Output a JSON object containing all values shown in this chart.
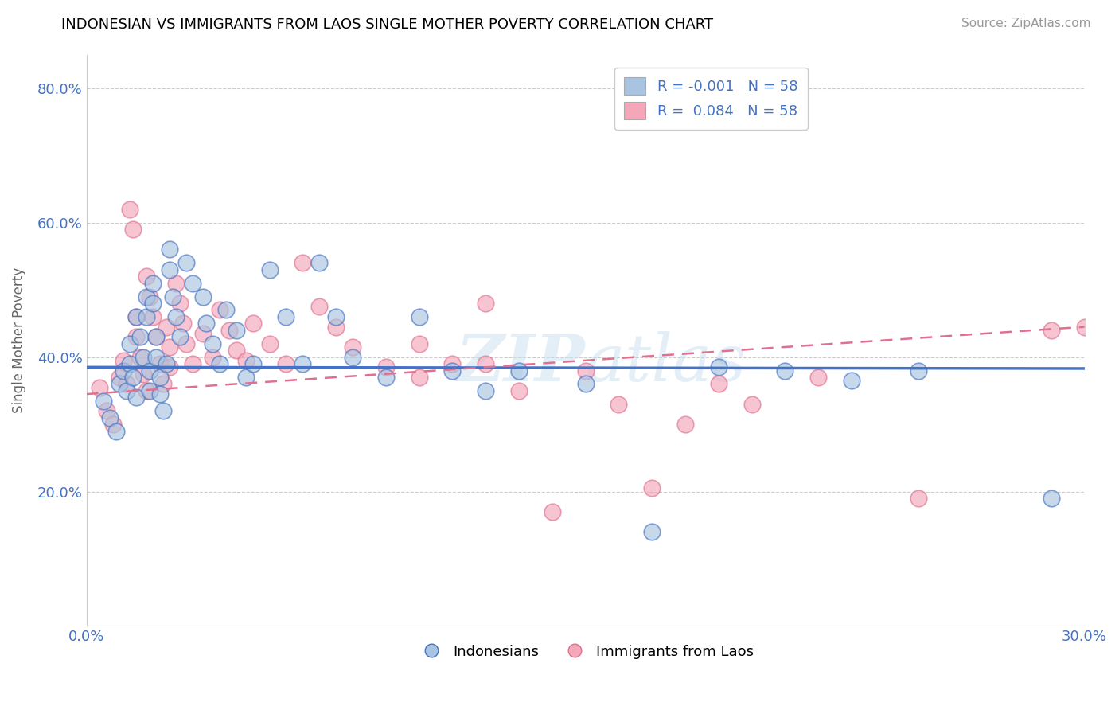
{
  "title": "INDONESIAN VS IMMIGRANTS FROM LAOS SINGLE MOTHER POVERTY CORRELATION CHART",
  "source": "Source: ZipAtlas.com",
  "ylabel": "Single Mother Poverty",
  "xlabel": "",
  "xlim": [
    0.0,
    0.3
  ],
  "ylim": [
    0.0,
    0.85
  ],
  "xticks": [
    0.0,
    0.05,
    0.1,
    0.15,
    0.2,
    0.25,
    0.3
  ],
  "xticklabels": [
    "0.0%",
    "",
    "",
    "",
    "",
    "",
    "30.0%"
  ],
  "yticks": [
    0.0,
    0.2,
    0.4,
    0.6,
    0.8
  ],
  "yticklabels": [
    "",
    "20.0%",
    "40.0%",
    "60.0%",
    "80.0%"
  ],
  "color_blue": "#a8c4e0",
  "color_pink": "#f4a7b9",
  "line_blue": "#4472c4",
  "line_pink": "#e07090",
  "watermark": "ZIPatlas",
  "blue_trend_y0": 0.385,
  "blue_trend_y1": 0.383,
  "pink_trend_y0": 0.345,
  "pink_trend_y1": 0.445,
  "blue_scatter_x": [
    0.005,
    0.007,
    0.009,
    0.01,
    0.011,
    0.012,
    0.013,
    0.013,
    0.014,
    0.015,
    0.015,
    0.016,
    0.017,
    0.018,
    0.018,
    0.019,
    0.019,
    0.02,
    0.02,
    0.021,
    0.021,
    0.022,
    0.022,
    0.023,
    0.024,
    0.025,
    0.025,
    0.026,
    0.027,
    0.028,
    0.03,
    0.032,
    0.035,
    0.036,
    0.038,
    0.04,
    0.042,
    0.045,
    0.048,
    0.05,
    0.055,
    0.06,
    0.065,
    0.07,
    0.075,
    0.08,
    0.09,
    0.1,
    0.11,
    0.12,
    0.13,
    0.15,
    0.17,
    0.19,
    0.21,
    0.23,
    0.25,
    0.29
  ],
  "blue_scatter_y": [
    0.335,
    0.31,
    0.29,
    0.36,
    0.38,
    0.35,
    0.42,
    0.39,
    0.37,
    0.34,
    0.46,
    0.43,
    0.4,
    0.49,
    0.46,
    0.38,
    0.35,
    0.51,
    0.48,
    0.43,
    0.4,
    0.37,
    0.345,
    0.32,
    0.39,
    0.56,
    0.53,
    0.49,
    0.46,
    0.43,
    0.54,
    0.51,
    0.49,
    0.45,
    0.42,
    0.39,
    0.47,
    0.44,
    0.37,
    0.39,
    0.53,
    0.46,
    0.39,
    0.54,
    0.46,
    0.4,
    0.37,
    0.46,
    0.38,
    0.35,
    0.38,
    0.36,
    0.14,
    0.385,
    0.38,
    0.365,
    0.38,
    0.19
  ],
  "pink_scatter_x": [
    0.004,
    0.006,
    0.008,
    0.01,
    0.011,
    0.012,
    0.013,
    0.014,
    0.015,
    0.015,
    0.016,
    0.017,
    0.018,
    0.018,
    0.019,
    0.02,
    0.021,
    0.022,
    0.023,
    0.024,
    0.025,
    0.025,
    0.027,
    0.028,
    0.029,
    0.03,
    0.032,
    0.035,
    0.038,
    0.04,
    0.043,
    0.045,
    0.048,
    0.05,
    0.055,
    0.06,
    0.065,
    0.07,
    0.075,
    0.08,
    0.09,
    0.1,
    0.11,
    0.12,
    0.13,
    0.15,
    0.17,
    0.19,
    0.1,
    0.12,
    0.14,
    0.16,
    0.22,
    0.25,
    0.2,
    0.18,
    0.29,
    0.3
  ],
  "pink_scatter_y": [
    0.355,
    0.32,
    0.3,
    0.37,
    0.395,
    0.36,
    0.62,
    0.59,
    0.46,
    0.43,
    0.4,
    0.375,
    0.35,
    0.52,
    0.49,
    0.46,
    0.43,
    0.39,
    0.36,
    0.445,
    0.415,
    0.385,
    0.51,
    0.48,
    0.45,
    0.42,
    0.39,
    0.435,
    0.4,
    0.47,
    0.44,
    0.41,
    0.395,
    0.45,
    0.42,
    0.39,
    0.54,
    0.475,
    0.445,
    0.415,
    0.385,
    0.42,
    0.39,
    0.48,
    0.35,
    0.38,
    0.205,
    0.36,
    0.37,
    0.39,
    0.17,
    0.33,
    0.37,
    0.19,
    0.33,
    0.3,
    0.44,
    0.445
  ]
}
